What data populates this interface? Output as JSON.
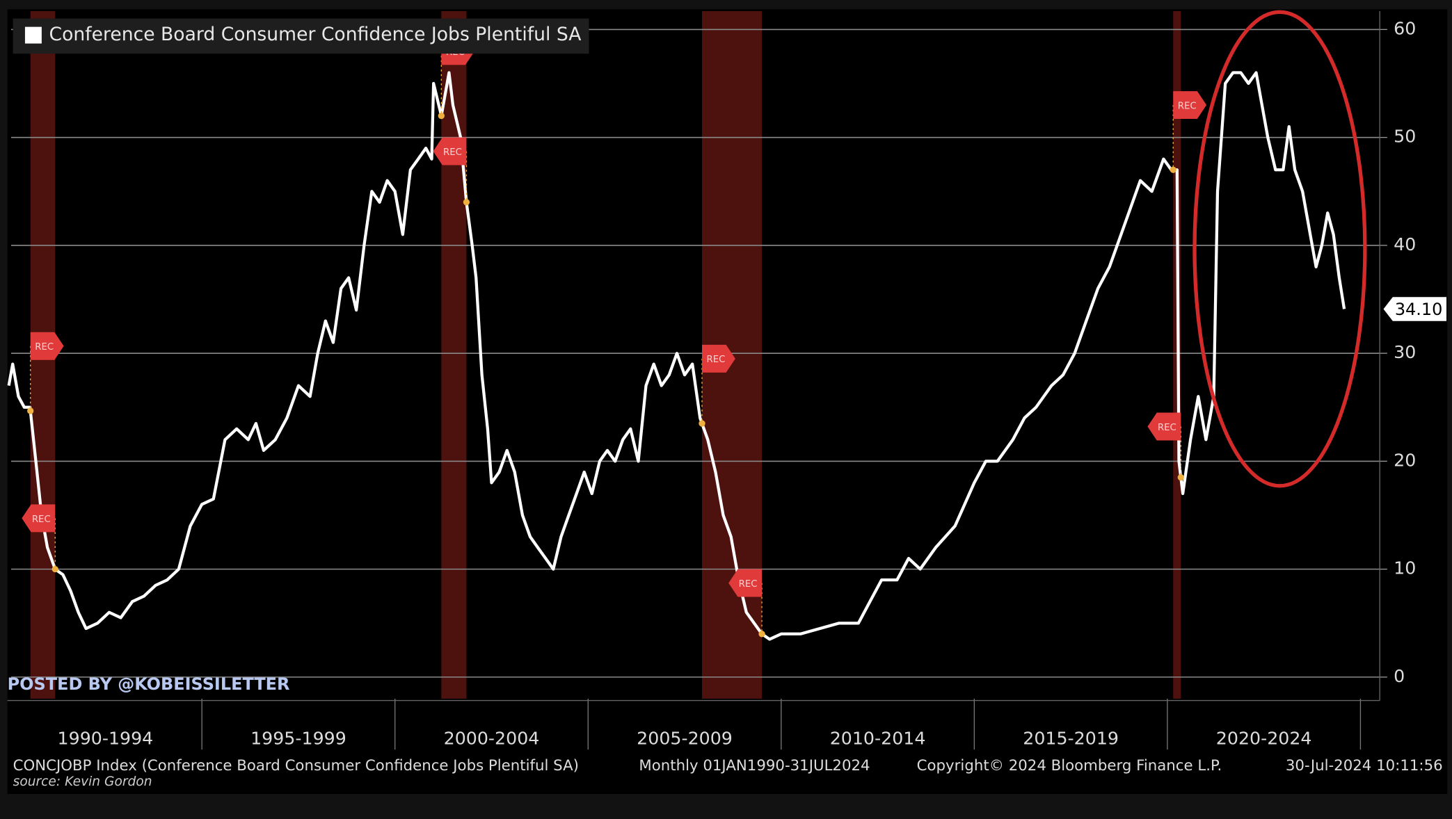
{
  "chart_data": {
    "type": "line",
    "legend": "Conference Board Consumer Confidence Jobs Plentiful SA",
    "series": [
      {
        "name": "Conference Board Consumer Confidence Jobs Plentiful SA",
        "color": "#ffffff",
        "x": [
          1990.0,
          1990.1,
          1990.25,
          1990.4,
          1990.55,
          1990.7,
          1990.85,
          1991.0,
          1991.2,
          1991.4,
          1991.6,
          1991.8,
          1992.0,
          1992.3,
          1992.6,
          1992.9,
          1993.2,
          1993.5,
          1993.8,
          1994.1,
          1994.4,
          1994.7,
          1995.0,
          1995.3,
          1995.6,
          1995.9,
          1996.2,
          1996.4,
          1996.6,
          1996.9,
          1997.2,
          1997.5,
          1997.8,
          1998.0,
          1998.2,
          1998.4,
          1998.6,
          1998.8,
          1999.0,
          1999.2,
          1999.4,
          1999.6,
          1999.8,
          2000.0,
          2000.2,
          2000.4,
          2000.6,
          2000.8,
          2000.95,
          2001.0,
          2001.2,
          2001.4,
          2001.5,
          2001.7,
          2001.85,
          2002.0,
          2002.1,
          2002.25,
          2002.4,
          2002.5,
          2002.7,
          2002.9,
          2003.1,
          2003.3,
          2003.5,
          2003.7,
          2003.9,
          2004.1,
          2004.3,
          2004.5,
          2004.7,
          2004.9,
          2005.1,
          2005.3,
          2005.5,
          2005.7,
          2005.9,
          2006.1,
          2006.3,
          2006.5,
          2006.7,
          2006.9,
          2007.1,
          2007.3,
          2007.5,
          2007.7,
          2007.9,
          2008.1,
          2008.3,
          2008.5,
          2008.7,
          2008.9,
          2009.1,
          2009.3,
          2009.5,
          2009.7,
          2010.0,
          2010.5,
          2011.0,
          2011.5,
          2012.0,
          2012.3,
          2012.6,
          2013.0,
          2013.3,
          2013.6,
          2014.0,
          2014.5,
          2015.0,
          2015.3,
          2015.6,
          2016.0,
          2016.3,
          2016.6,
          2017.0,
          2017.3,
          2017.6,
          2017.9,
          2018.2,
          2018.5,
          2018.8,
          2019.0,
          2019.3,
          2019.6,
          2019.9,
          2020.1,
          2020.25,
          2020.3,
          2020.4,
          2020.6,
          2020.8,
          2021.0,
          2021.2,
          2021.3,
          2021.5,
          2021.7,
          2021.9,
          2022.1,
          2022.3,
          2022.45,
          2022.6,
          2022.8,
          2023.0,
          2023.15,
          2023.3,
          2023.5,
          2023.7,
          2023.85,
          2024.0,
          2024.15,
          2024.3,
          2024.45,
          2024.58
        ],
        "values": [
          27,
          29,
          26,
          25,
          25,
          20,
          15,
          12,
          10,
          9.5,
          8,
          6,
          4.5,
          5,
          6,
          5.5,
          7,
          7.5,
          8.5,
          9,
          10,
          14,
          16,
          16.5,
          22,
          23,
          22,
          23.5,
          21,
          22,
          24,
          27,
          26,
          30,
          33,
          31,
          36,
          37,
          34,
          40,
          45,
          44,
          46,
          45,
          41,
          47,
          48,
          49,
          48,
          55,
          52,
          56,
          53,
          50,
          44,
          40,
          37,
          28,
          23,
          18,
          19,
          21,
          19,
          15,
          13,
          12,
          11,
          10,
          13,
          15,
          17,
          19,
          17,
          20,
          21,
          20,
          22,
          23,
          20,
          27,
          29,
          27,
          28,
          30,
          28,
          29,
          24,
          22,
          19,
          15,
          13,
          9,
          6,
          5,
          4,
          3.5,
          4,
          4,
          4.5,
          5,
          5,
          7,
          9,
          9,
          11,
          10,
          12,
          14,
          18,
          20,
          20,
          22,
          24,
          25,
          27,
          28,
          30,
          33,
          36,
          38,
          41,
          43,
          46,
          45,
          48,
          47,
          47,
          20,
          17,
          22,
          26,
          22,
          26,
          45,
          55,
          56,
          56,
          55,
          56,
          53,
          50,
          47,
          47,
          51,
          47,
          45,
          41,
          38,
          40,
          43,
          41,
          37,
          34.1
        ]
      }
    ],
    "last_label": "34.10",
    "recessions": [
      [
        1990.56,
        1991.2
      ],
      [
        2001.2,
        2001.85
      ],
      [
        2007.95,
        2009.5
      ],
      [
        2020.15,
        2020.35
      ]
    ],
    "recession_label": "REC",
    "categories": [
      "1990-1994",
      "1995-1999",
      "2000-2004",
      "2005-2009",
      "2010-2014",
      "2015-2019",
      "2020-2024"
    ],
    "xticks": [
      1995,
      2000,
      2005,
      2010,
      2015,
      2020,
      2025
    ],
    "xlim": [
      1990.06,
      2025.5
    ],
    "ylim": [
      -2,
      61.7
    ],
    "yticks": [
      0,
      10,
      20,
      30,
      40,
      50,
      60
    ],
    "grid": true,
    "watermark": "POSTED BY @KOBEISSILETTER",
    "footer": {
      "index": "CONCJOBP Index (Conference Board Consumer Confidence Jobs Plentiful SA)",
      "range": "Monthly 01JAN1990-31JUL2024",
      "copyright": "Copyright© 2024 Bloomberg Finance L.P.",
      "timestamp": "30-Jul-2024 10:11:56",
      "source": "source: Kevin Gordon"
    }
  }
}
